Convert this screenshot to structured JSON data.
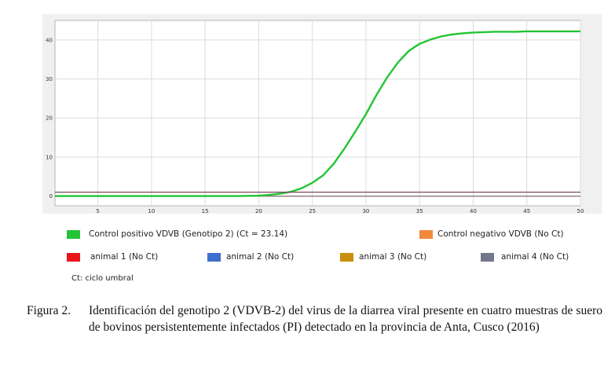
{
  "chart_data": {
    "type": "line",
    "title": "",
    "xlabel": "",
    "ylabel": "",
    "xlim": [
      1,
      50
    ],
    "ylim": [
      -2.5,
      45
    ],
    "x_ticks": [
      5,
      10,
      15,
      20,
      25,
      30,
      35,
      40,
      45,
      50
    ],
    "y_ticks": [
      0,
      10,
      20,
      30,
      40
    ],
    "grid": true,
    "threshold": 1.0,
    "ct": 23.14,
    "series": [
      {
        "name": "Control positivo VDVB (Genotipo 2) (Ct = 23.14)",
        "color": "#2ecc40",
        "x": [
          1,
          5,
          10,
          15,
          18,
          19,
          20,
          21,
          22,
          23,
          24,
          25,
          26,
          27,
          28,
          29,
          30,
          31,
          32,
          33,
          34,
          35,
          36,
          37,
          38,
          39,
          40,
          41,
          42,
          43,
          44,
          45,
          46,
          47,
          48,
          49,
          50
        ],
        "y": [
          0,
          0,
          0,
          0,
          0,
          0.05,
          0.1,
          0.3,
          0.6,
          1.1,
          2.0,
          3.4,
          5.3,
          8.3,
          12.2,
          16.5,
          21.0,
          26.0,
          30.5,
          34.3,
          37.2,
          39.0,
          40.1,
          40.9,
          41.4,
          41.7,
          41.9,
          42.0,
          42.1,
          42.1,
          42.1,
          42.2,
          42.2,
          42.2,
          42.2,
          42.2,
          42.2
        ]
      },
      {
        "name": "Control negativo VDVB (No Ct)",
        "color": "#f28c38",
        "x": [
          1,
          50
        ],
        "y": [
          0,
          0
        ]
      },
      {
        "name": "animal 1 (No Ct)",
        "color": "#e8161b",
        "x": [
          1,
          50
        ],
        "y": [
          0,
          0
        ]
      },
      {
        "name": "animal 2 (No Ct)",
        "color": "#3f6fcf",
        "x": [
          1,
          50
        ],
        "y": [
          0,
          0
        ]
      },
      {
        "name": "animal 3 (No Ct)",
        "color": "#c8900c",
        "x": [
          1,
          50
        ],
        "y": [
          0,
          0
        ]
      },
      {
        "name": "animal 4 (No Ct)",
        "color": "#7a7a8c",
        "x": [
          1,
          50
        ],
        "y": [
          0,
          0
        ]
      }
    ]
  },
  "legend": {
    "items": [
      {
        "label": "Control positivo VDVB (Genotipo 2) (Ct = 23.14)",
        "color": "#22c435"
      },
      {
        "label": "Control negativo VDVB (No Ct)",
        "color": "#f2883a"
      },
      {
        "label": "animal 1 (No Ct)",
        "color": "#e8161b"
      },
      {
        "label": "animal 2 (No Ct)",
        "color": "#3f6fcf"
      },
      {
        "label": "animal 3 (No Ct)",
        "color": "#c8900c"
      },
      {
        "label": "animal 4 (No Ct)",
        "color": "#74778a"
      }
    ],
    "note": "Ct: ciclo umbral"
  },
  "caption": {
    "label": "Figura 2.",
    "text": "Identificación del genotipo 2 (VDVB-2) del virus de la diarrea viral presente en cuatro muestras de suero de bovinos persistentemente infectados (PI) detectado en la provincia de Anta, Cusco (2016)"
  }
}
